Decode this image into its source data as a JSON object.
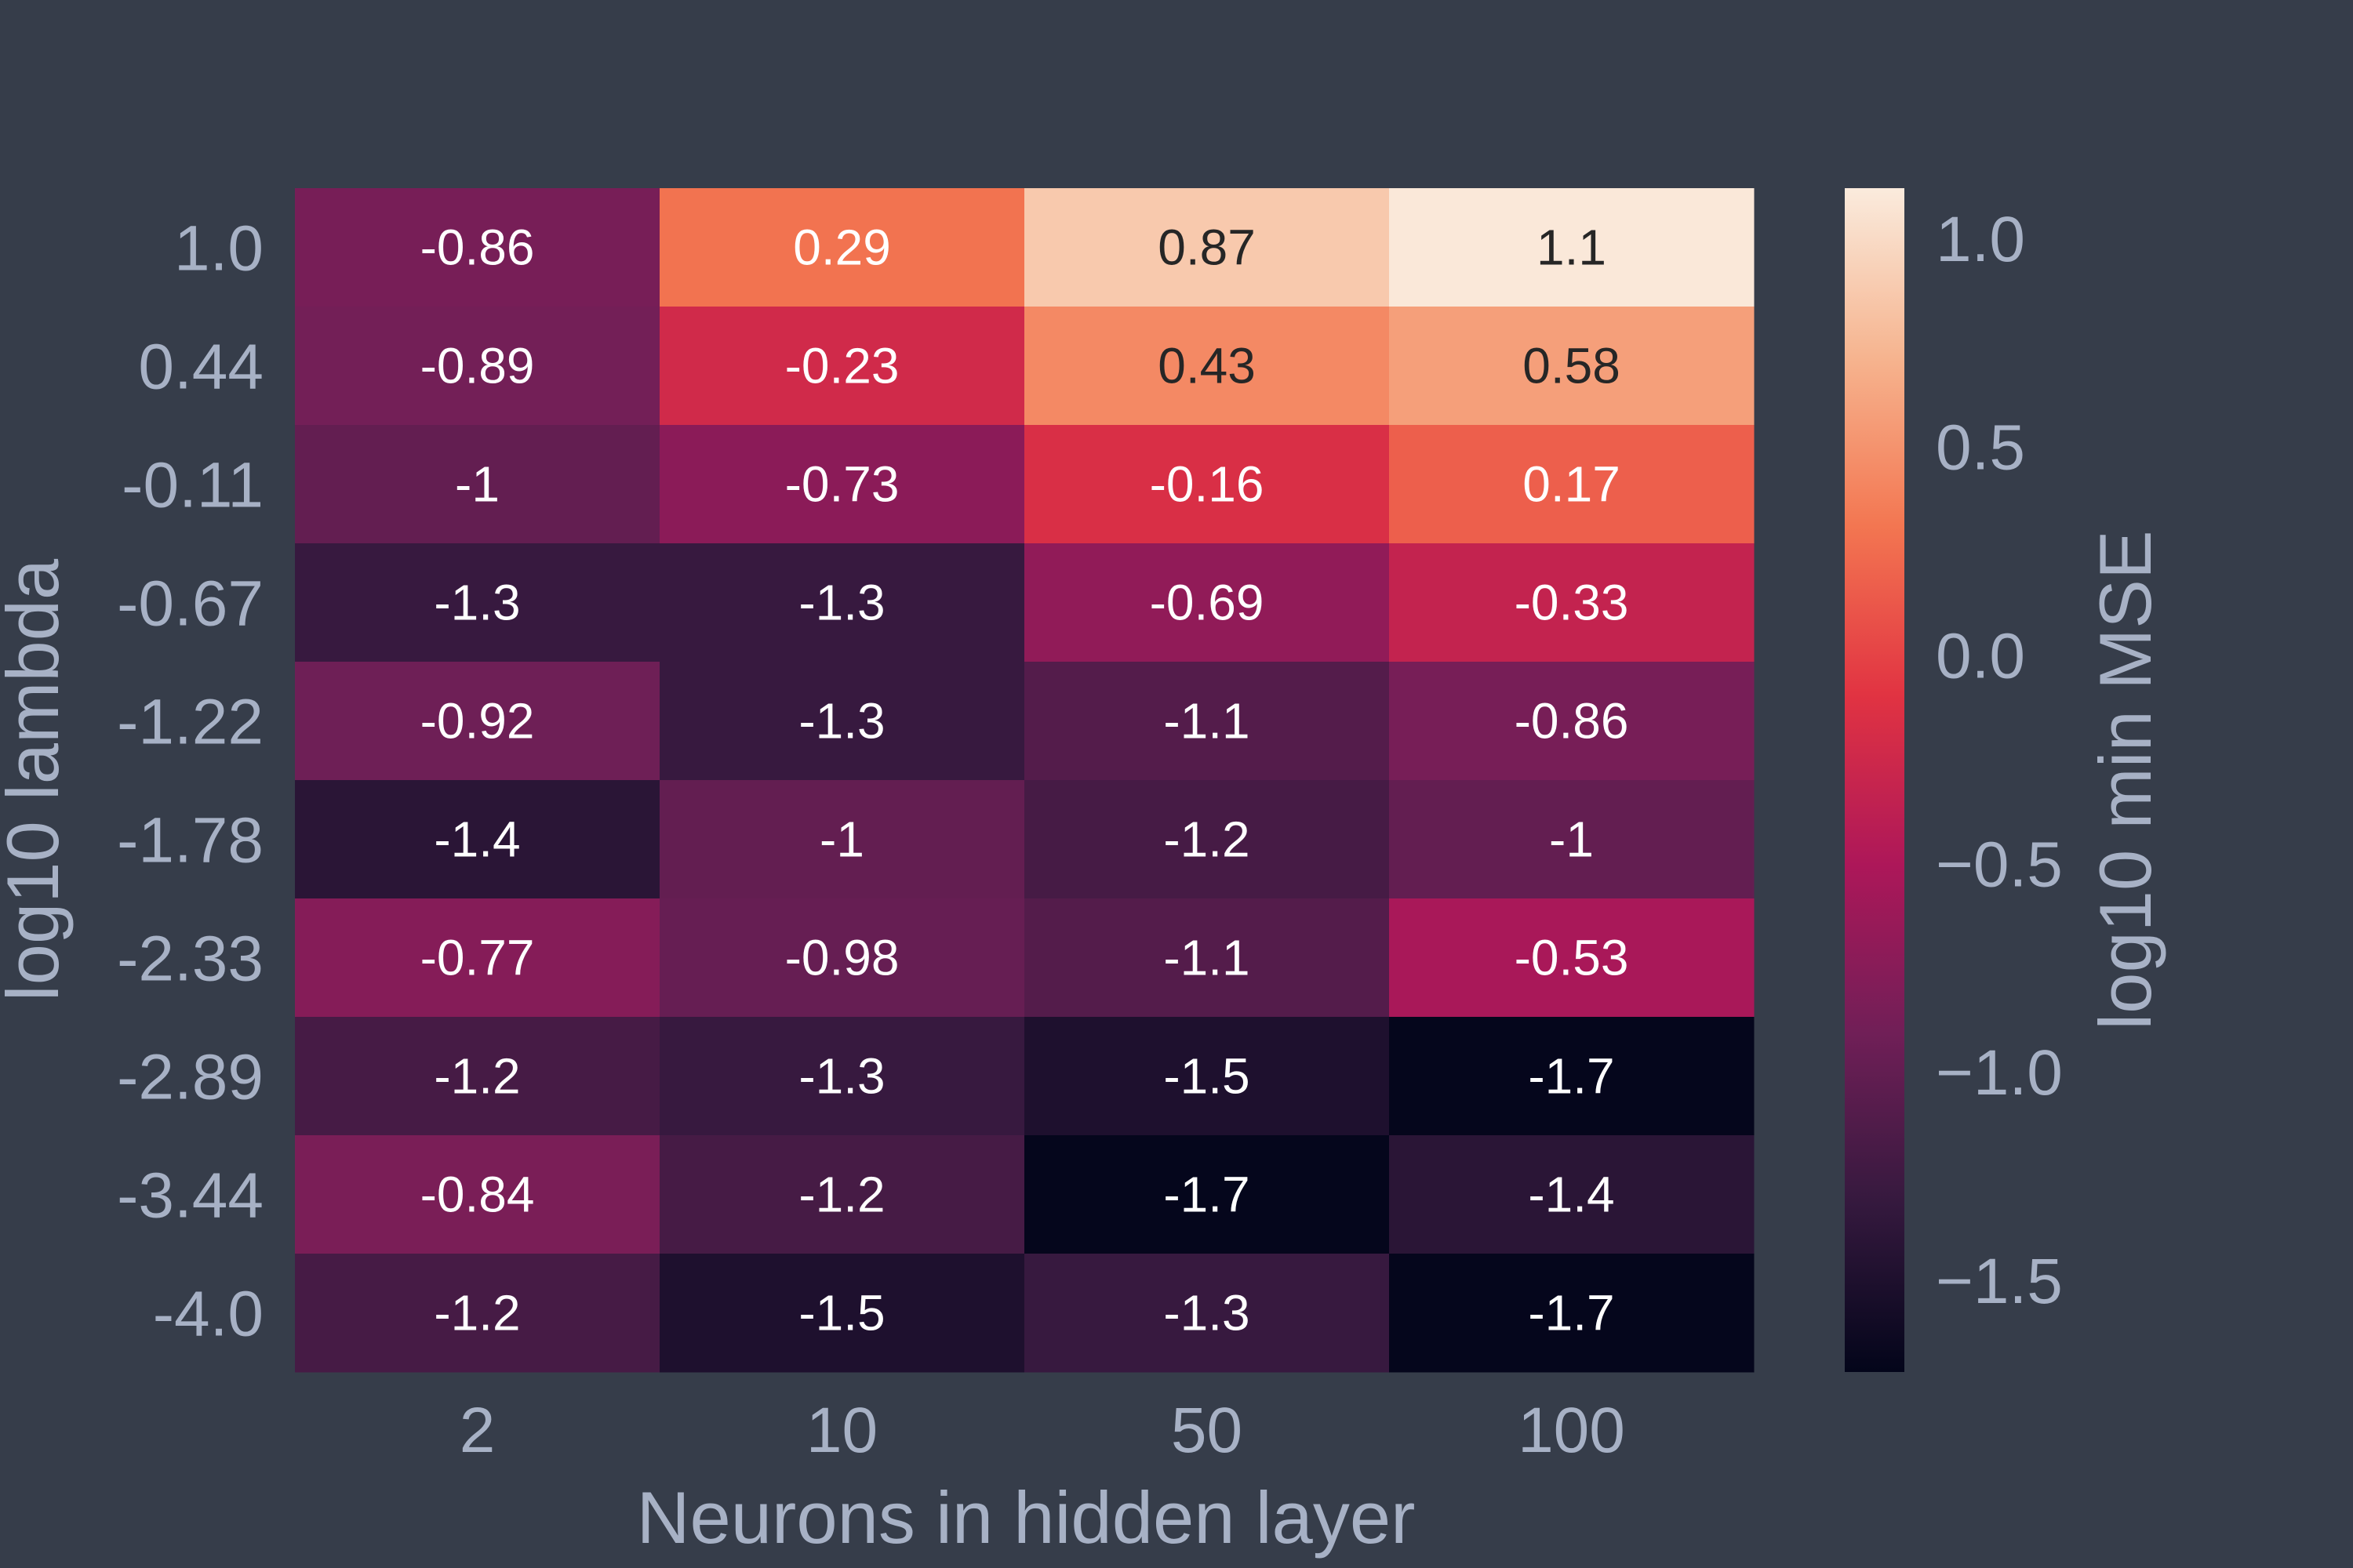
{
  "chart_data": {
    "type": "heatmap",
    "title": "",
    "xlabel": "Neurons in hidden layer",
    "ylabel": "log10 lambda",
    "x_categories": [
      "2",
      "10",
      "50",
      "100"
    ],
    "y_categories": [
      "1.0",
      "0.44",
      "-0.11",
      "-0.67",
      "-1.22",
      "-1.78",
      "-2.33",
      "-2.89",
      "-3.44",
      "-4.0"
    ],
    "values": [
      [
        -0.86,
        0.29,
        0.87,
        1.1
      ],
      [
        -0.89,
        -0.23,
        0.43,
        0.58
      ],
      [
        -1.0,
        -0.73,
        -0.16,
        0.17
      ],
      [
        -1.3,
        -1.3,
        -0.69,
        -0.33
      ],
      [
        -0.92,
        -1.3,
        -1.1,
        -0.86
      ],
      [
        -1.4,
        -1.0,
        -1.2,
        -1.0
      ],
      [
        -0.77,
        -0.98,
        -1.1,
        -0.53
      ],
      [
        -1.2,
        -1.3,
        -1.5,
        -1.7
      ],
      [
        -0.84,
        -1.2,
        -1.7,
        -1.4
      ],
      [
        -1.2,
        -1.5,
        -1.3,
        -1.7
      ]
    ],
    "cell_labels": [
      [
        "-0.86",
        "0.29",
        "0.87",
        "1.1"
      ],
      [
        "-0.89",
        "-0.23",
        "0.43",
        "0.58"
      ],
      [
        "-1",
        "-0.73",
        "-0.16",
        "0.17"
      ],
      [
        "-1.3",
        "-1.3",
        "-0.69",
        "-0.33"
      ],
      [
        "-0.92",
        "-1.3",
        "-1.1",
        "-0.86"
      ],
      [
        "-1.4",
        "-1",
        "-1.2",
        "-1"
      ],
      [
        "-0.77",
        "-0.98",
        "-1.1",
        "-0.53"
      ],
      [
        "-1.2",
        "-1.3",
        "-1.5",
        "-1.7"
      ],
      [
        "-0.84",
        "-1.2",
        "-1.7",
        "-1.4"
      ],
      [
        "-1.2",
        "-1.5",
        "-1.3",
        "-1.7"
      ]
    ],
    "colorbar": {
      "label": "log10 min MSE",
      "range": [
        -1.72,
        1.12
      ],
      "ticks": [
        1.0,
        0.5,
        0.0,
        -0.5,
        -1.0,
        -1.5
      ],
      "tick_labels": [
        "1.0",
        "0.5",
        "0.0",
        "−0.5",
        "−1.0",
        "−1.5"
      ],
      "colormap": "rocket",
      "colormap_stops": [
        "#03051a",
        "#35193e",
        "#701f57",
        "#ad1759",
        "#e13342",
        "#f37651",
        "#f6b48f",
        "#faebdd"
      ]
    },
    "grid": false,
    "background_color": "#363d4a",
    "tick_color": "#a7b1c5"
  }
}
